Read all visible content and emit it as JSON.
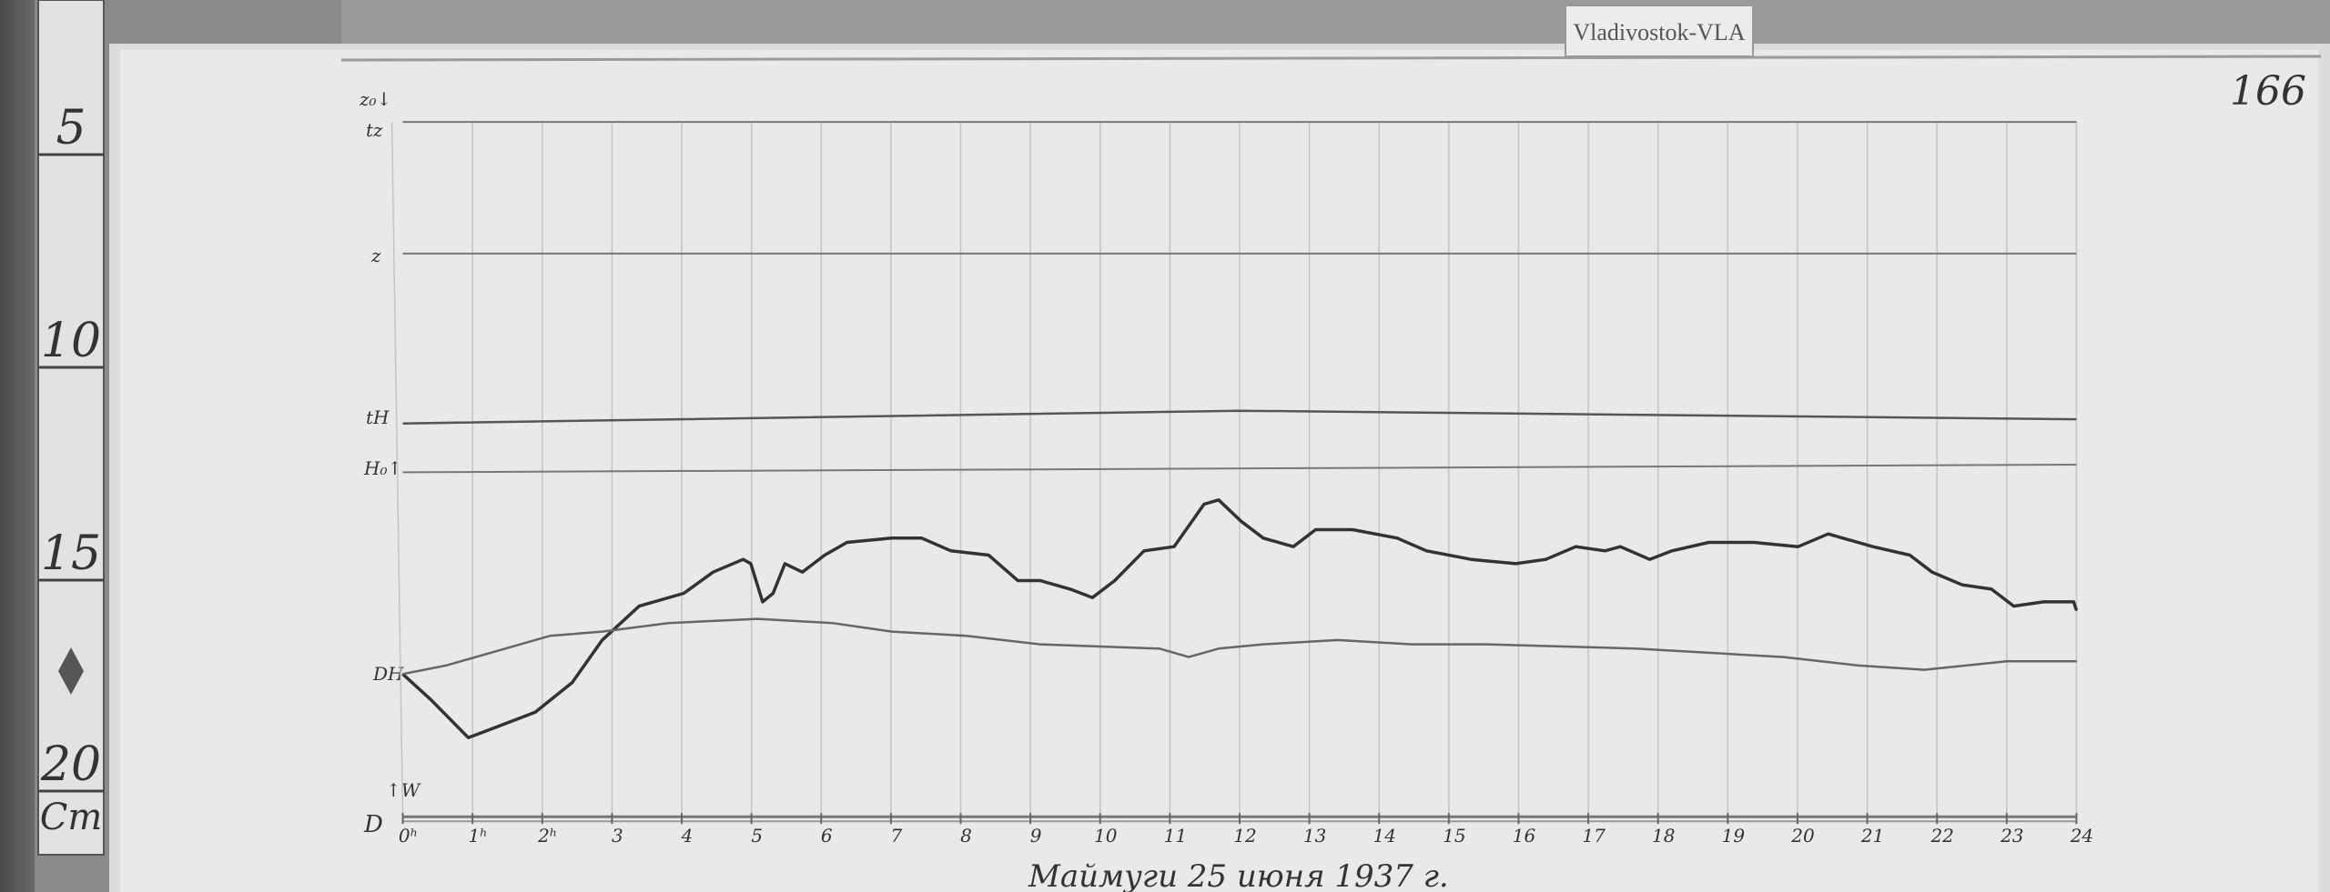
{
  "station_label": "Vladivostok-VLA",
  "sheet_number": "166",
  "caption": "Маймуги 25 июня 1937 г.",
  "ruler": {
    "marks": [
      "5",
      "10",
      "15",
      "20"
    ],
    "unit": "Cm"
  },
  "colors": {
    "paper": "#e9e9e9",
    "ink": "#3a3a3a",
    "board": "#7d7d7d"
  },
  "trace_labels": {
    "z0": "z₀↓",
    "tz": "tz",
    "z": "z",
    "tH": "tH",
    "H0": "H₀↑",
    "DH": "DH",
    "D": "D",
    "W": "↑W"
  },
  "chart_data": {
    "type": "line",
    "title": "",
    "xlabel": "",
    "ylabel": "",
    "x_unit": "hours",
    "y_unit": "cm (from sheet ruler)",
    "xlim": [
      0,
      24
    ],
    "ylim": [
      4,
      22
    ],
    "grid": true,
    "x_ticks": [
      "0ʰ",
      "1ʰ",
      "2ʰ",
      "3",
      "4",
      "5",
      "6",
      "7",
      "8",
      "9",
      "10",
      "11",
      "12",
      "13",
      "14",
      "15",
      "16",
      "17",
      "18",
      "19",
      "20",
      "21",
      "22",
      "23",
      "24"
    ],
    "baselines": [
      {
        "label": "tz",
        "x": [
          0,
          24
        ],
        "y": [
          4.9,
          4.9
        ]
      },
      {
        "label": "z",
        "x": [
          0,
          24
        ],
        "y": [
          8.0,
          8.0
        ]
      },
      {
        "label": "tH",
        "x": [
          0,
          12,
          24
        ],
        "y": [
          12.0,
          11.7,
          11.9
        ]
      },
      {
        "label": "H0",
        "x": [
          0,
          24
        ],
        "y": [
          13.15,
          12.97
        ]
      }
    ],
    "series": [
      {
        "x": [
          0,
          0.4,
          0.94,
          1.26,
          1.9,
          2.43,
          2.86,
          3.39,
          4.03,
          4.45,
          4.88,
          4.99,
          5.16,
          5.31,
          5.48,
          5.73,
          6.05,
          6.37,
          7.01,
          7.44,
          7.86,
          8.4,
          8.82,
          9.14,
          9.57,
          9.89,
          10.21,
          10.63,
          11.06,
          11.49,
          11.7,
          12.02,
          12.34,
          12.77,
          13.09,
          13.62,
          14.26,
          14.68,
          15.32,
          15.96,
          16.39,
          16.82,
          17.24,
          17.46,
          17.88,
          18.2,
          18.73,
          19.37,
          20.01,
          20.44,
          21.08,
          21.61,
          21.93,
          22.36,
          22.78,
          23.1,
          23.53,
          23.96,
          24.0
        ],
        "y": [
          17.9,
          18.5,
          19.4,
          19.2,
          18.8,
          18.1,
          17.1,
          16.3,
          16.0,
          15.5,
          15.2,
          15.3,
          16.2,
          16.0,
          15.3,
          15.5,
          15.1,
          14.8,
          14.7,
          14.7,
          15.0,
          15.1,
          15.7,
          15.7,
          15.9,
          16.1,
          15.7,
          15.0,
          14.9,
          13.9,
          13.8,
          14.3,
          14.7,
          14.9,
          14.5,
          14.5,
          14.7,
          15.0,
          15.2,
          15.3,
          15.2,
          14.9,
          15.0,
          14.9,
          15.2,
          15.0,
          14.8,
          14.8,
          14.9,
          14.6,
          14.9,
          15.1,
          15.5,
          15.8,
          15.9,
          16.3,
          16.2,
          16.2,
          16.4
        ]
      },
      {
        "x": [
          0,
          0.62,
          1.26,
          2.11,
          2.86,
          3.81,
          5.09,
          6.16,
          7.01,
          8.08,
          9.14,
          10.85,
          11.27,
          11.7,
          12.34,
          13.41,
          14.47,
          15.54,
          17.67,
          19.8,
          20.87,
          21.82,
          23.0,
          24
        ],
        "y": [
          17.9,
          17.7,
          17.4,
          17.0,
          16.9,
          16.7,
          16.6,
          16.7,
          16.9,
          17.0,
          17.2,
          17.3,
          17.5,
          17.3,
          17.2,
          17.1,
          17.2,
          17.2,
          17.3,
          17.5,
          17.7,
          17.8,
          17.6,
          17.6
        ]
      }
    ],
    "time_axis_y": 21.26
  }
}
